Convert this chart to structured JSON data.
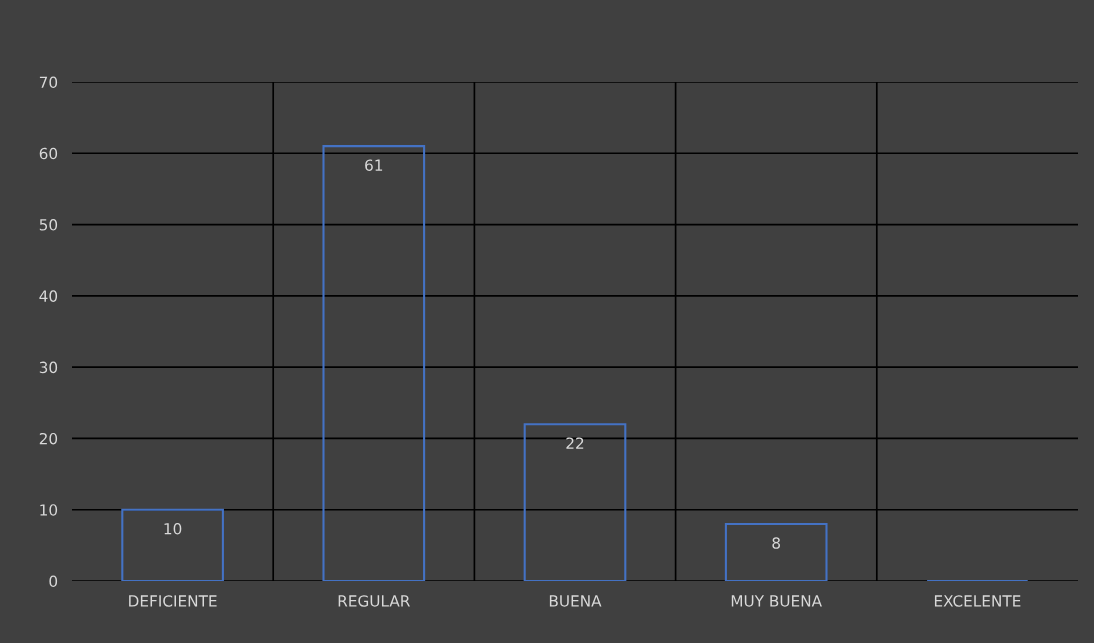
{
  "chart_data": {
    "type": "bar",
    "categories": [
      "DEFICIENTE",
      "REGULAR",
      "BUENA",
      "MUY BUENA",
      "EXCELENTE"
    ],
    "values": [
      10,
      61,
      22,
      8,
      0
    ],
    "value_labels": [
      "10",
      "61",
      "22",
      "8",
      null
    ],
    "color": "#4472c4",
    "ylim": [
      0,
      70
    ],
    "yticks": [
      0,
      10,
      20,
      30,
      40,
      50,
      60,
      70
    ],
    "grid": true
  }
}
